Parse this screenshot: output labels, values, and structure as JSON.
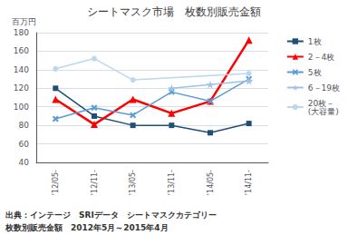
{
  "chart_data": {
    "type": "line",
    "title": "シートマスク市場　枚数別販売金額",
    "categories": [
      "'12/05-",
      "'12/11-",
      "'13/05-",
      "'13/11-",
      "'14/05-",
      "'14/11-"
    ],
    "y_label": "百万円",
    "ylim": [
      40,
      180
    ],
    "yticks": [
      40,
      60,
      80,
      100,
      120,
      140,
      160,
      180
    ],
    "grid": true,
    "legend": "right",
    "series": [
      {
        "name": "1枚",
        "color": "#1F4E79",
        "marker": "square",
        "line_style": "solid",
        "values": [
          120,
          90,
          80,
          80,
          72,
          82
        ]
      },
      {
        "name": "2－4枚",
        "color": "#FF0000",
        "marker": "triangle",
        "line_style": "solid",
        "values": [
          108,
          81,
          108,
          93,
          106,
          172
        ]
      },
      {
        "name": "5枚",
        "color": "#5B9BD5",
        "marker": "x",
        "line_style": "solid",
        "values": [
          87,
          99,
          91,
          116,
          106,
          130
        ]
      },
      {
        "name": "6－19枚",
        "color": "#9DC3E6",
        "marker": "star",
        "line_style": "solid",
        "values": [
          null,
          null,
          null,
          120,
          124,
          128
        ]
      },
      {
        "name": "20枚－\n(大容量)",
        "color": "#BDD7EE",
        "marker": "circle",
        "line_style": "solid",
        "values": [
          141,
          152,
          129,
          null,
          null,
          136
        ]
      }
    ],
    "annotations": [
      "出典：インテージ　SRIデータ　シートマスクカテゴリー",
      "枚数別販売金額　2012年5月～2015年4月"
    ]
  }
}
